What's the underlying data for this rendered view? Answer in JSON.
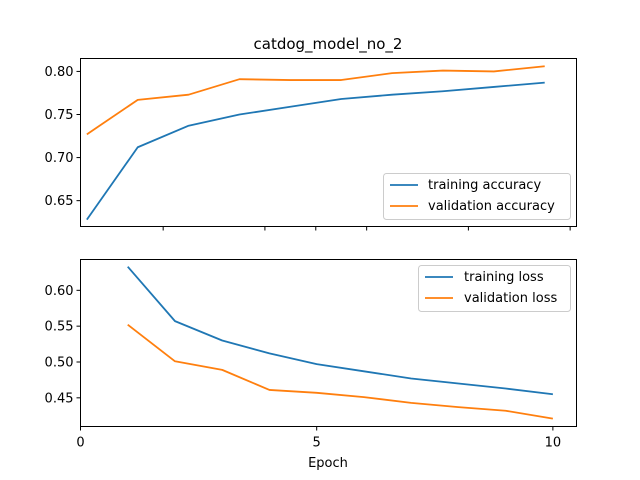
{
  "chart_data": [
    {
      "type": "line",
      "title": "catdog_model_no_2",
      "xlabel": "",
      "ylabel": "",
      "xlim": [
        0.375,
        10.125
      ],
      "ylim": [
        0.62,
        0.815
      ],
      "x_tick_values": [
        0,
        5,
        10
      ],
      "x_tick_labels_shown": false,
      "y_ticks": [
        "0.65",
        "0.70",
        "0.75",
        "0.80"
      ],
      "legend_position": "lower-right",
      "series": [
        {
          "name": "training accuracy",
          "color": "#1f77b4",
          "x": [
            0.5,
            1.5,
            2.5,
            3.5,
            4.5,
            5.5,
            6.5,
            7.5,
            8.5,
            9.5
          ],
          "y": [
            0.628,
            0.712,
            0.737,
            0.75,
            0.759,
            0.768,
            0.773,
            0.777,
            0.782,
            0.787
          ]
        },
        {
          "name": "validation accuracy",
          "color": "#ff7f0e",
          "x": [
            0.5,
            1.5,
            2.5,
            3.5,
            4.5,
            5.5,
            6.5,
            7.5,
            8.5,
            9.5
          ],
          "y": [
            0.727,
            0.767,
            0.773,
            0.791,
            0.79,
            0.79,
            0.798,
            0.801,
            0.8,
            0.806
          ]
        }
      ]
    },
    {
      "type": "line",
      "title": "",
      "xlabel": "Epoch",
      "ylabel": "",
      "xlim": [
        0,
        10.5
      ],
      "ylim": [
        0.41,
        0.643
      ],
      "x_ticks": [
        "0",
        "5",
        "10"
      ],
      "y_ticks": [
        "0.45",
        "0.50",
        "0.55",
        "0.60"
      ],
      "legend_position": "upper-right",
      "series": [
        {
          "name": "training loss",
          "color": "#1f77b4",
          "x": [
            1,
            2,
            3,
            4,
            5,
            6,
            7,
            8,
            9,
            10
          ],
          "y": [
            0.633,
            0.557,
            0.53,
            0.512,
            0.497,
            0.487,
            0.477,
            0.47,
            0.463,
            0.455
          ]
        },
        {
          "name": "validation loss",
          "color": "#ff7f0e",
          "x": [
            1,
            2,
            3,
            4,
            5,
            6,
            7,
            8,
            9,
            10
          ],
          "y": [
            0.552,
            0.501,
            0.489,
            0.461,
            0.457,
            0.451,
            0.443,
            0.437,
            0.432,
            0.421
          ]
        }
      ]
    }
  ]
}
